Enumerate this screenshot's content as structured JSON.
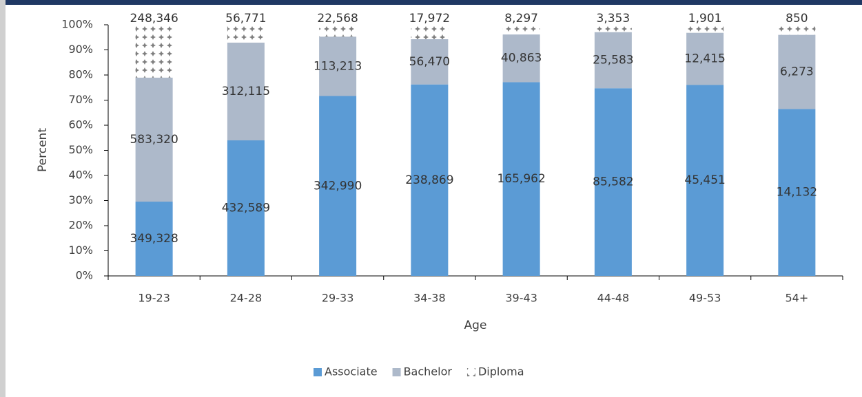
{
  "chart_data": {
    "type": "bar",
    "stacking": "percent",
    "xlabel": "Age",
    "ylabel": "Percent",
    "categories": [
      "19-23",
      "24-28",
      "29-33",
      "34-38",
      "39-43",
      "44-48",
      "49-53",
      "54+"
    ],
    "series": [
      {
        "name": "Associate",
        "color": "#5b9bd5",
        "values": [
          349328,
          432589,
          342990,
          238869,
          165962,
          85582,
          45451,
          14132
        ],
        "value_labels": [
          "349,328",
          "432,589",
          "342,990",
          "238,869",
          "165,962",
          "85,582",
          "45,451",
          "14,132"
        ]
      },
      {
        "name": "Bachelor",
        "color": "#adb9ca",
        "values": [
          583320,
          312115,
          113213,
          56470,
          40863,
          25583,
          12415,
          6273
        ],
        "value_labels": [
          "583,320",
          "312,115",
          "113,213",
          "56,470",
          "40,863",
          "25,583",
          "12,415",
          "6,273"
        ]
      },
      {
        "name": "Diploma",
        "color": "#7f7f7f",
        "pattern": "dots",
        "values": [
          248346,
          56771,
          22568,
          17972,
          8297,
          3353,
          1901,
          850
        ],
        "value_labels": [
          "248,346",
          "56,771",
          "22,568",
          "17,972",
          "8,297",
          "3,353",
          "1,901",
          "850"
        ]
      }
    ],
    "ylim": [
      0,
      100
    ],
    "yticks": [
      {
        "value": 0,
        "label": "0%"
      },
      {
        "value": 10,
        "label": "10%"
      },
      {
        "value": 20,
        "label": "20%"
      },
      {
        "value": 30,
        "label": "30%"
      },
      {
        "value": 40,
        "label": "40%"
      },
      {
        "value": 50,
        "label": "50%"
      },
      {
        "value": 60,
        "label": "60%"
      },
      {
        "value": 70,
        "label": "70%"
      },
      {
        "value": 80,
        "label": "80%"
      },
      {
        "value": 90,
        "label": "90%"
      },
      {
        "value": 100,
        "label": "100%"
      }
    ],
    "legend": "bottom"
  }
}
